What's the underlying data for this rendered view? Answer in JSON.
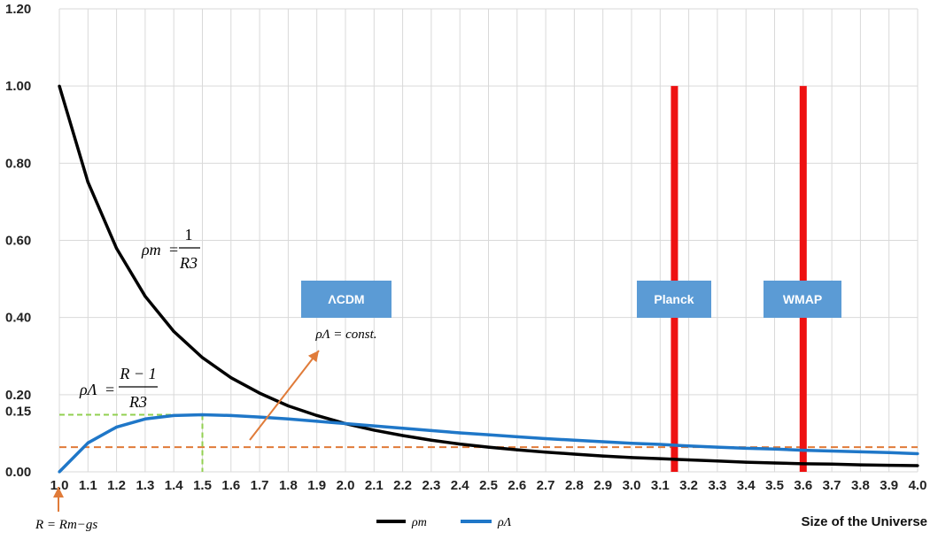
{
  "chart_data": {
    "type": "line",
    "xlabel": "Size of the Universe",
    "ylabel": "",
    "xlim": [
      1.0,
      4.0
    ],
    "ylim": [
      0,
      1.2
    ],
    "grid": true,
    "legend_placement": "bottom-center",
    "x_tick_labels": [
      "1.0",
      "1.1",
      "1.2",
      "1.3",
      "1.4",
      "1.5",
      "1.6",
      "1.7",
      "1.8",
      "1.9",
      "2.0",
      "2.1",
      "2.2",
      "2.3",
      "2.4",
      "2.5",
      "2.6",
      "2.7",
      "2.8",
      "2.9",
      "3.0",
      "3.1",
      "3.2",
      "3.3",
      "3.4",
      "3.5",
      "3.6",
      "3.7",
      "3.8",
      "3.9",
      "4.0"
    ],
    "y_tick_labels": [
      "0.00",
      "0.20",
      "0.40",
      "0.60",
      "0.80",
      "1.00",
      "1.20"
    ],
    "y_tick_values": [
      0,
      0.2,
      0.4,
      0.6,
      0.8,
      1.0,
      1.2
    ],
    "extra_y_tick": {
      "label": "0.15",
      "value": 0.15
    },
    "x": [
      1.0,
      1.1,
      1.2,
      1.3,
      1.4,
      1.5,
      1.6,
      1.7,
      1.8,
      1.9,
      2.0,
      2.1,
      2.2,
      2.3,
      2.4,
      2.5,
      2.6,
      2.7,
      2.8,
      2.9,
      3.0,
      3.1,
      3.2,
      3.3,
      3.4,
      3.5,
      3.6,
      3.7,
      3.8,
      3.9,
      4.0
    ],
    "series": [
      {
        "name": "ρm",
        "color": "#000000",
        "values": [
          1.0,
          0.751,
          0.579,
          0.455,
          0.364,
          0.296,
          0.244,
          0.204,
          0.171,
          0.146,
          0.125,
          0.108,
          0.094,
          0.082,
          0.072,
          0.064,
          0.057,
          0.051,
          0.046,
          0.041,
          0.037,
          0.034,
          0.031,
          0.028,
          0.025,
          0.023,
          0.021,
          0.02,
          0.018,
          0.017,
          0.016
        ]
      },
      {
        "name": "ρΛ",
        "color": "#1f77c8",
        "values": [
          0.0,
          0.075,
          0.116,
          0.137,
          0.146,
          0.148,
          0.146,
          0.142,
          0.137,
          0.131,
          0.125,
          0.119,
          0.113,
          0.107,
          0.101,
          0.096,
          0.091,
          0.086,
          0.082,
          0.078,
          0.074,
          0.071,
          0.067,
          0.064,
          0.061,
          0.059,
          0.056,
          0.054,
          0.052,
          0.05,
          0.047
        ]
      }
    ],
    "vertical_markers": [
      {
        "label": "Planck",
        "x": 3.15,
        "y_top": 1.0,
        "color": "#ee1111"
      },
      {
        "label": "WMAP",
        "x": 3.6,
        "y_top": 1.0,
        "color": "#ee1111"
      }
    ],
    "reference_lines": [
      {
        "orientation": "horizontal",
        "y": 0.064,
        "color": "#e07b39",
        "style": "dashed"
      },
      {
        "orientation": "horizontal",
        "y": 0.148,
        "x_to": 1.5,
        "color": "#92d050",
        "style": "dashed"
      },
      {
        "orientation": "vertical",
        "x": 1.5,
        "y_to": 0.148,
        "color": "#92d050",
        "style": "dashed"
      }
    ],
    "annotations": {
      "rho_m_formula": {
        "lhs": "ρm",
        "equals": "=",
        "num": "1",
        "den": "R3"
      },
      "rho_lambda_formula": {
        "lhs": "ρΛ",
        "equals": "=",
        "num": "R − 1",
        "den": "R3"
      },
      "lcdm_box": {
        "label": "ΛCDM",
        "subtitle": "ρΛ = const.",
        "color": "#5b9bd5"
      },
      "r_label": "R = Rm−gs"
    },
    "box_color": "#5b9bd5",
    "arrow_color": "#e07b39"
  }
}
